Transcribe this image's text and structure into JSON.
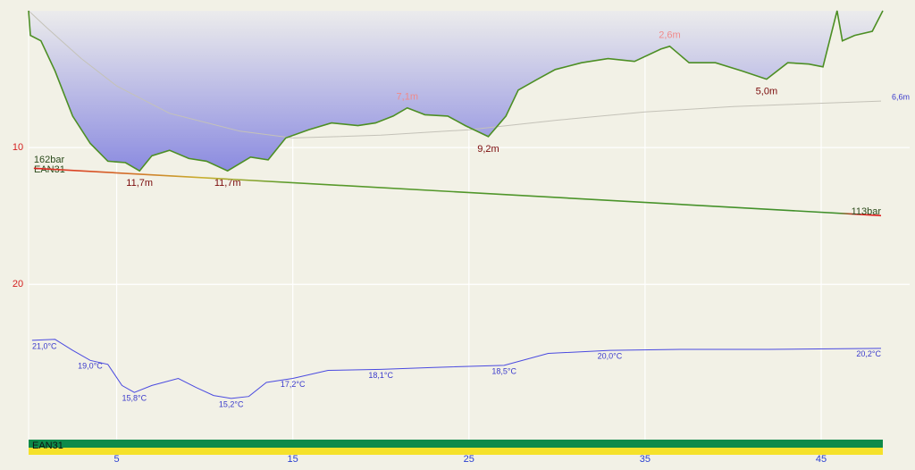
{
  "chart_data": {
    "type": "line",
    "xlim": [
      0,
      48.5
    ],
    "xticks": [
      5,
      15,
      25,
      35,
      45
    ],
    "ylim": [
      0,
      32
    ],
    "yticks": [
      10,
      20
    ],
    "grid": true,
    "gas": "EAN31",
    "depth": {
      "color": "#4d8f24",
      "x": [
        0,
        0.1,
        0.7,
        1.5,
        2.5,
        3.5,
        4.5,
        5.5,
        6.3,
        7.0,
        8.0,
        9.1,
        10.1,
        11.3,
        12.6,
        13.6,
        14.6,
        15.9,
        17.2,
        18.7,
        19.7,
        20.7,
        21.5,
        22.5,
        23.8,
        24.8,
        26.1,
        27.1,
        27.8,
        28.9,
        29.9,
        31.4,
        32.9,
        34.4,
        35.9,
        36.4,
        37.5,
        39.0,
        40.5,
        41.9,
        43.1,
        44.3,
        45.1,
        45.9,
        46.2,
        46.9,
        47.9,
        48.5
      ],
      "values": [
        0,
        1.8,
        2.2,
        4.4,
        7.7,
        9.7,
        11.0,
        11.1,
        11.7,
        10.6,
        10.2,
        10.8,
        11.0,
        11.7,
        10.7,
        10.9,
        9.3,
        8.7,
        8.2,
        8.4,
        8.2,
        7.7,
        7.1,
        7.6,
        7.7,
        8.4,
        9.2,
        7.7,
        5.8,
        5.0,
        4.3,
        3.8,
        3.5,
        3.7,
        2.8,
        2.6,
        3.8,
        3.8,
        4.4,
        5.0,
        3.8,
        3.9,
        4.1,
        0,
        2.2,
        1.8,
        1.5,
        0
      ],
      "value_labels": [
        null,
        null,
        null,
        null,
        null,
        null,
        null,
        null,
        "11,7m",
        null,
        null,
        null,
        null,
        "11,7m",
        null,
        null,
        null,
        null,
        null,
        null,
        null,
        null,
        "7,1m",
        null,
        null,
        null,
        "9,2m",
        null,
        null,
        null,
        null,
        null,
        null,
        null,
        null,
        "2,6m",
        null,
        null,
        null,
        "5,0m",
        null,
        null,
        null,
        null,
        null,
        null,
        null,
        null
      ]
    },
    "avg_depth": {
      "color": "#c4c2b8",
      "x": [
        0,
        1,
        3,
        5,
        8,
        12,
        15,
        20,
        25,
        30,
        35,
        40,
        48.4
      ],
      "values": [
        0,
        1.2,
        3.5,
        5.5,
        7.5,
        8.8,
        9.3,
        9.1,
        8.7,
        8.0,
        7.4,
        7.0,
        6.6
      ],
      "value_labels": [
        null,
        null,
        null,
        null,
        null,
        null,
        null,
        null,
        null,
        null,
        null,
        null,
        "6,6m"
      ]
    },
    "pressure": {
      "color": "#3f8f2a",
      "ylim": [
        325,
        -128
      ],
      "x": [
        0.3,
        48.4
      ],
      "values": [
        162,
        113
      ],
      "value_labels": [
        "162bar",
        "113bar"
      ]
    },
    "temperature": {
      "color": "#4a4ae0",
      "ylim": [
        53.9,
        10.2
      ],
      "x": [
        0.2,
        1.5,
        2.5,
        3.5,
        4.5,
        5.3,
        6.0,
        7.0,
        8.5,
        9.5,
        10.5,
        11.5,
        12.5,
        13.5,
        15.0,
        17.0,
        20.0,
        23.0,
        27.0,
        29.5,
        33.0,
        37.0,
        42.0,
        48.4
      ],
      "values": [
        21.0,
        21.1,
        20.0,
        19.0,
        18.6,
        16.5,
        15.8,
        16.5,
        17.2,
        16.3,
        15.5,
        15.2,
        15.4,
        16.8,
        17.2,
        18.0,
        18.1,
        18.3,
        18.5,
        19.7,
        20.0,
        20.1,
        20.1,
        20.2
      ],
      "value_labels": [
        "21,0°C",
        null,
        null,
        "19,0°C",
        null,
        null,
        "15,8°C",
        null,
        null,
        null,
        null,
        "15,2°C",
        null,
        null,
        "17,2°C",
        null,
        "18,1°C",
        null,
        "18,5°C",
        null,
        "20,0°C",
        null,
        null,
        "20,2°C"
      ]
    }
  }
}
